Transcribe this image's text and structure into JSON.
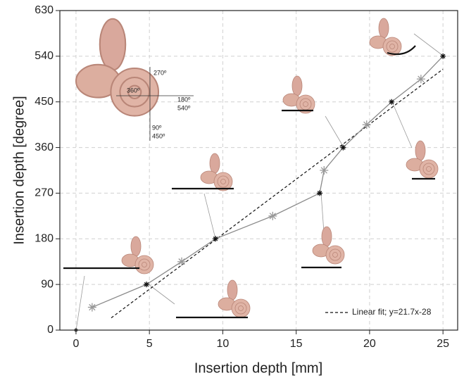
{
  "chart_data": {
    "type": "line",
    "xlabel": "Insertion depth [mm]",
    "ylabel": "Insertion depth [degree]",
    "xlim": [
      -1.1,
      26
    ],
    "xticks": [
      0,
      5,
      10,
      15,
      20,
      25
    ],
    "ylim": [
      0,
      630
    ],
    "yticks": [
      0,
      90,
      180,
      270,
      360,
      450,
      540,
      630
    ],
    "grid": true,
    "series": [
      {
        "color": "#8a8a8a",
        "x": [
          1.1,
          4.8,
          7.2,
          9.5,
          13.4,
          16.6,
          16.9,
          18.2,
          19.8,
          21.5,
          23.5,
          25
        ],
        "values": [
          45,
          90,
          135,
          180,
          225,
          270,
          315,
          360,
          405,
          450,
          495,
          540
        ],
        "marker_colors": [
          "#999999",
          "#111111",
          "#999999",
          "#111111",
          "#999999",
          "#111111",
          "#999999",
          "#111111",
          "#999999",
          "#111111",
          "#999999",
          "#111111"
        ]
      },
      {
        "color": "#333333",
        "x": [
          0
        ],
        "values": [
          0
        ]
      }
    ],
    "fit": {
      "label": "Linear fit; y=21.7x-28",
      "slope": 21.7,
      "intercept": -28,
      "xrange": [
        2.4,
        25
      ],
      "color": "#111111"
    },
    "inset_labels": [
      "270º",
      "180º",
      "540º",
      "360º",
      "90º",
      "450º"
    ]
  }
}
